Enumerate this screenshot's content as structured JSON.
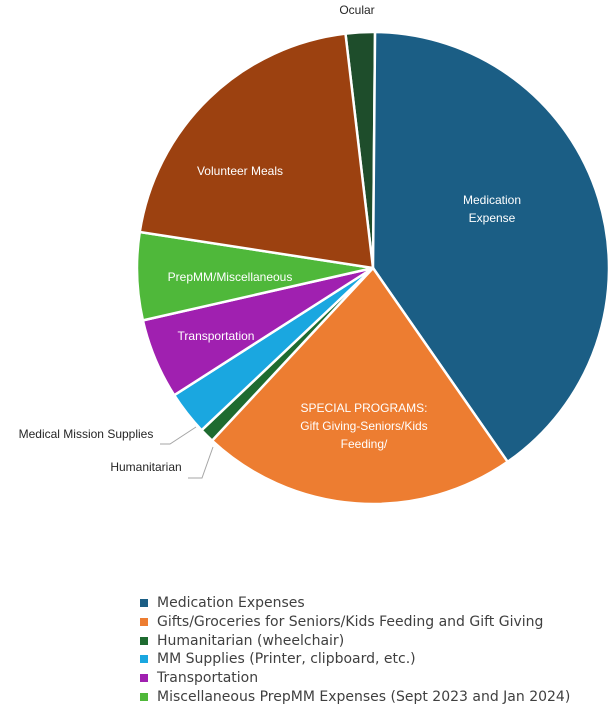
{
  "chart_data": {
    "type": "pie",
    "slices": [
      {
        "label": "Ocular",
        "value": 2.0,
        "color": "#1e4d2b"
      },
      {
        "label": "Medication\nExpense",
        "value": 40.2,
        "color": "#1b5e85"
      },
      {
        "label": "SPECIAL PROGRAMS:\nGift Giving-Seniors/Kids\nFeeding/",
        "value": 21.6,
        "color": "#ed7d31"
      },
      {
        "label": "Humanitarian",
        "value": 1.0,
        "color": "#1e6b30"
      },
      {
        "label": "Medical Mission Supplies",
        "value": 3.0,
        "color": "#1aa7e0"
      },
      {
        "label": "Transportation",
        "value": 5.5,
        "color": "#a020b0"
      },
      {
        "label": "PrepMM/Miscellaneous",
        "value": 6.0,
        "color": "#4fb83a"
      },
      {
        "label": "Volunteer Meals",
        "value": 20.7,
        "color": "#9c4110"
      }
    ],
    "legend": [
      {
        "label": "Medication Expenses",
        "color": "#1b5e85"
      },
      {
        "label": "Gifts/Groceries for Seniors/Kids Feeding and Gift Giving",
        "color": "#ed7d31"
      },
      {
        "label": "Humanitarian (wheelchair)",
        "color": "#1e6b30"
      },
      {
        "label": "MM Supplies (Printer, clipboard, etc.)",
        "color": "#1aa7e0"
      },
      {
        "label": "Transportation",
        "color": "#a020b0"
      },
      {
        "label": "Miscellaneous PrepMM  Expenses (Sept 2023 and Jan 2024)",
        "color": "#4fb83a"
      }
    ],
    "legend_position": "bottom"
  }
}
